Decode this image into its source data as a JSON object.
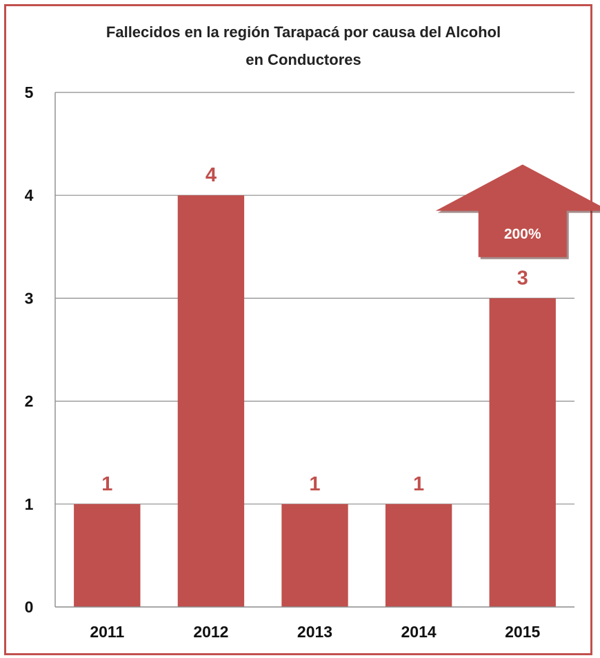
{
  "chart_data": {
    "type": "bar",
    "title_lines": [
      "Fallecidos en la región Tarapacá por causa del Alcohol",
      "en Conductores"
    ],
    "categories": [
      "2011",
      "2012",
      "2013",
      "2014",
      "2015"
    ],
    "values": [
      1,
      4,
      1,
      1,
      3
    ],
    "data_labels": [
      "1",
      "4",
      "1",
      "1",
      "3"
    ],
    "ylim": [
      0,
      5
    ],
    "yticks": [
      "0",
      "1",
      "2",
      "3",
      "4",
      "5"
    ],
    "grid": true,
    "legend": "none",
    "annotation": {
      "shape": "up-arrow",
      "text": "200%",
      "attached_to": "2015"
    },
    "colors": {
      "bar": "#c0504d",
      "data_label": "#c0504d",
      "frame": "#c0504d",
      "grid": "#8c8c8c"
    }
  }
}
